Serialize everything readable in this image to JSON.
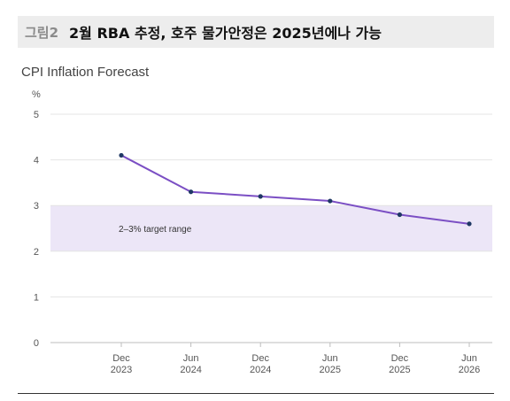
{
  "figure": {
    "number": "그림2",
    "title": "2월 RBA 추정, 호주 물가안정은 2025년에나 가능"
  },
  "chart_data": {
    "type": "line",
    "title": "CPI Inflation Forecast",
    "yunit": "%",
    "ylim": [
      0,
      5
    ],
    "yticks": [
      0,
      1,
      2,
      3,
      4,
      5
    ],
    "x_tick_labels": [
      [
        "Dec",
        "2023"
      ],
      [
        "Jun",
        "2024"
      ],
      [
        "Dec",
        "2024"
      ],
      [
        "Jun",
        "2025"
      ],
      [
        "Dec",
        "2025"
      ],
      [
        "Jun",
        "2026"
      ]
    ],
    "series": [
      {
        "values": [
          4.1,
          3.3,
          3.2,
          3.1,
          2.8,
          2.6
        ]
      }
    ],
    "target_band": {
      "range": [
        2,
        3
      ],
      "label": "2–3% target range"
    },
    "grid": true,
    "colors": {
      "line": "#7b4fc4",
      "marker": "#1f3864",
      "band": "#ece6f7",
      "grid": "#e4e4e4",
      "axis_text": "#555555"
    }
  }
}
